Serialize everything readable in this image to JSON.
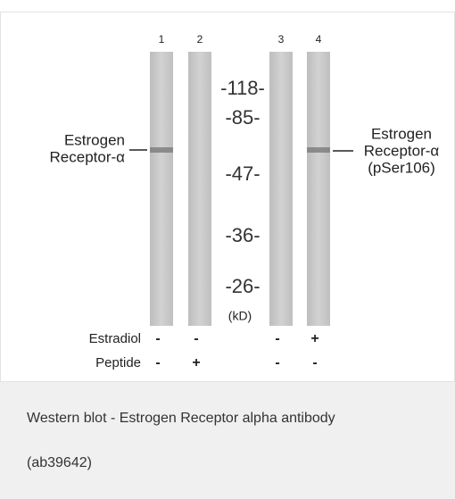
{
  "figure": {
    "lane_numbers": [
      "1",
      "2",
      "3",
      "4"
    ],
    "markers": [
      "-118-",
      "-85-",
      "-47-",
      "-36-",
      "-26-"
    ],
    "marker_unit": "(kD)",
    "left_label": [
      "Estrogen",
      "Receptor-α"
    ],
    "right_label": [
      "Estrogen",
      "Receptor-α",
      "(pSer106)"
    ],
    "rows": [
      {
        "name": "Estradiol",
        "signs": [
          "-",
          "-",
          "-",
          "+"
        ]
      },
      {
        "name": "Peptide",
        "signs": [
          "-",
          "+",
          "-",
          "-"
        ]
      }
    ]
  },
  "caption": {
    "lines": [
      "Western blot - Estrogen Receptor alpha antibody",
      "(ab39642)"
    ]
  }
}
